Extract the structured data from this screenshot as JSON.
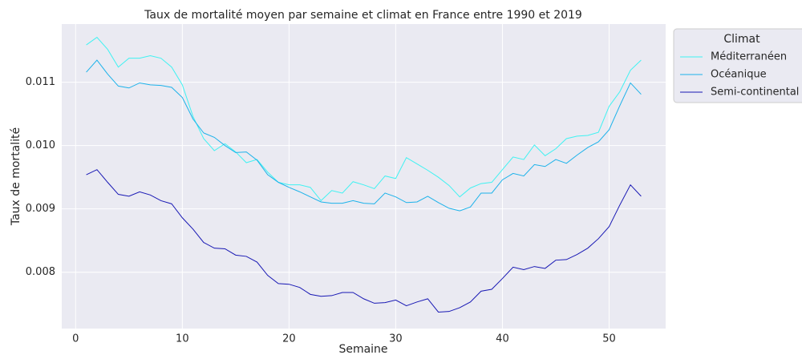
{
  "chart_data": {
    "type": "line",
    "title": "Taux de mortalité moyen par semaine et climat en France entre 1990 et 2019",
    "xlabel": "Semaine",
    "ylabel": "Taux de mortalité",
    "x": [
      1,
      2,
      3,
      4,
      5,
      6,
      7,
      8,
      9,
      10,
      11,
      12,
      13,
      14,
      15,
      16,
      17,
      18,
      19,
      20,
      21,
      22,
      23,
      24,
      25,
      26,
      27,
      28,
      29,
      30,
      31,
      32,
      33,
      34,
      35,
      36,
      37,
      38,
      39,
      40,
      41,
      42,
      43,
      44,
      45,
      46,
      47,
      48,
      49,
      50,
      51,
      52,
      53
    ],
    "series": [
      {
        "name": "Méditerranéen",
        "color": "#3ff2f2",
        "values": [
          0.01159,
          0.01171,
          0.01152,
          0.01124,
          0.01138,
          0.01138,
          0.01142,
          0.01138,
          0.01124,
          0.01096,
          0.01046,
          0.01011,
          0.00992,
          0.01003,
          0.0099,
          0.00973,
          0.00978,
          0.00958,
          0.00942,
          0.00938,
          0.00938,
          0.00934,
          0.00913,
          0.00929,
          0.00925,
          0.00943,
          0.00938,
          0.00932,
          0.00952,
          0.00948,
          0.00981,
          0.00971,
          0.00961,
          0.0095,
          0.00937,
          0.00919,
          0.00933,
          0.0094,
          0.00942,
          0.00962,
          0.00982,
          0.00978,
          0.01001,
          0.00984,
          0.00995,
          0.01011,
          0.01015,
          0.01016,
          0.01021,
          0.01062,
          0.01085,
          0.01119,
          0.01135
        ]
      },
      {
        "name": "Océanique",
        "color": "#1cb2ea",
        "values": [
          0.01116,
          0.01135,
          0.01113,
          0.01094,
          0.01091,
          0.01099,
          0.01096,
          0.01095,
          0.01092,
          0.01076,
          0.01042,
          0.0102,
          0.01013,
          0.01,
          0.00989,
          0.0099,
          0.00977,
          0.00954,
          0.00942,
          0.00934,
          0.00927,
          0.00919,
          0.00911,
          0.00909,
          0.00909,
          0.00913,
          0.00909,
          0.00908,
          0.00925,
          0.00919,
          0.0091,
          0.00911,
          0.0092,
          0.0091,
          0.00901,
          0.00897,
          0.00903,
          0.00925,
          0.00925,
          0.00946,
          0.00956,
          0.00952,
          0.0097,
          0.00967,
          0.00978,
          0.00972,
          0.00985,
          0.00997,
          0.01006,
          0.01025,
          0.01063,
          0.01099,
          0.01081
        ]
      },
      {
        "name": "Semi-continental",
        "color": "#1818b4",
        "values": [
          0.00954,
          0.00962,
          0.00942,
          0.00923,
          0.0092,
          0.00927,
          0.00922,
          0.00913,
          0.00908,
          0.00886,
          0.00868,
          0.00847,
          0.00838,
          0.00837,
          0.00827,
          0.00825,
          0.00816,
          0.00795,
          0.00782,
          0.00781,
          0.00776,
          0.00765,
          0.00762,
          0.00763,
          0.00768,
          0.00768,
          0.00758,
          0.00751,
          0.00752,
          0.00756,
          0.00747,
          0.00753,
          0.00758,
          0.00737,
          0.00738,
          0.00744,
          0.00753,
          0.0077,
          0.00773,
          0.0079,
          0.00808,
          0.00804,
          0.00809,
          0.00806,
          0.00819,
          0.0082,
          0.00828,
          0.00838,
          0.00853,
          0.00872,
          0.00906,
          0.00938,
          0.0092
        ]
      }
    ],
    "legend_title": "Climat",
    "legend": "outside upper right",
    "xlim": [
      -1.3,
      55.3
    ],
    "xticks": [
      0,
      10,
      20,
      30,
      40,
      50
    ],
    "ylim": [
      0.00711,
      0.01192
    ],
    "yticks": [
      0.008,
      0.009,
      {
        "value": 0.01,
        "label": "0.010"
      },
      0.011
    ],
    "grid": true
  }
}
